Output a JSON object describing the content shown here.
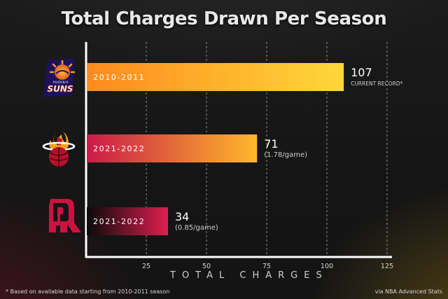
{
  "chart_data": {
    "type": "bar",
    "orientation": "horizontal",
    "title": "Total Charges Drawn Per Season",
    "xlabel": "TOTAL CHARGES",
    "ylabel": "",
    "xlim": [
      0,
      125
    ],
    "xticks": [
      25,
      50,
      75,
      100,
      125
    ],
    "grid": "vertical dashed",
    "categories": [
      "2010-2011",
      "2021-2022",
      "2021-2022"
    ],
    "values": [
      107,
      71,
      34
    ],
    "value_labels": [
      "107",
      "71",
      "34"
    ],
    "annotations": [
      "CURRENT RECORD*",
      "(1.78/game)",
      "(0.85/game)"
    ],
    "team_logos": [
      "suns-logo",
      "heat-logo",
      "rockets-logo"
    ],
    "bar_gradients": [
      [
        "#ff8a1e",
        "#ffd73a"
      ],
      [
        "#c91a48",
        "#ffb82a"
      ],
      [
        "#0a0a0a",
        "#e01e4e"
      ]
    ]
  },
  "logo_text": {
    "suns": "SUNS",
    "phoenix": "PHOENIX"
  },
  "footnote": "* Based on available data starting from 2010-2011 season",
  "source": "via NBA Advanced Stats"
}
